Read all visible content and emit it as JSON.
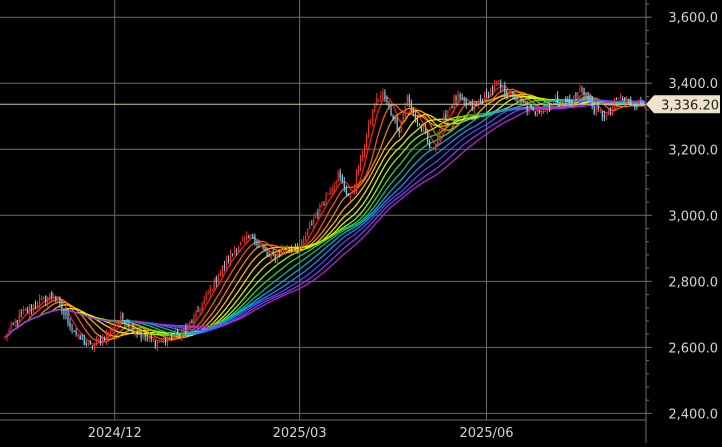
{
  "chart_data": {
    "type": "candlestick",
    "title": "",
    "xlabel": "",
    "ylabel": "",
    "ylim": [
      2380,
      3640
    ],
    "y_ticks": [
      {
        "value": 2400,
        "label": "2,400.0"
      },
      {
        "value": 2600,
        "label": "2,600.0"
      },
      {
        "value": 2800,
        "label": "2,800.0"
      },
      {
        "value": 3000,
        "label": "3,000.0"
      },
      {
        "value": 3200,
        "label": "3,200.0"
      },
      {
        "value": 3400,
        "label": "3,400.0"
      },
      {
        "value": 3600,
        "label": "3,600.0"
      }
    ],
    "x_ticks": [
      {
        "label": "2024/12",
        "day": 54
      },
      {
        "label": "2025/03",
        "day": 145
      },
      {
        "label": "2025/06",
        "day": 237
      }
    ],
    "days_total": 316,
    "grid": true,
    "last_price": {
      "value": 3336.2,
      "label": "3,336.20"
    },
    "series": [
      {
        "anchor_days": [
          0,
          8,
          16,
          24,
          30,
          36,
          42,
          50,
          58,
          66,
          74,
          82,
          90,
          98,
          106,
          114,
          122,
          130,
          138,
          146,
          152,
          158,
          164,
          170,
          176,
          182,
          186,
          190,
          194,
          198,
          202,
          206,
          210,
          214,
          218,
          222,
          226,
          230,
          236,
          242,
          248,
          254,
          260,
          266,
          272,
          278,
          284,
          290,
          296,
          302,
          308,
          316
        ],
        "anchor_closes": [
          2630,
          2700,
          2735,
          2760,
          2690,
          2630,
          2600,
          2640,
          2690,
          2640,
          2615,
          2630,
          2660,
          2740,
          2830,
          2905,
          2935,
          2870,
          2900,
          2910,
          2990,
          3060,
          3120,
          3050,
          3190,
          3340,
          3370,
          3310,
          3260,
          3355,
          3290,
          3250,
          3190,
          3260,
          3320,
          3355,
          3340,
          3325,
          3360,
          3395,
          3370,
          3340,
          3310,
          3330,
          3350,
          3340,
          3385,
          3320,
          3300,
          3355,
          3340,
          3336.2
        ]
      }
    ],
    "candle_colors": {
      "up": "#e8342a",
      "down": "#87ceeb"
    },
    "ma_colors": [
      "#ff1e1e",
      "#ff5a14",
      "#ff8c00",
      "#ffbe00",
      "#ffe600",
      "#dcff00",
      "#96ff00",
      "#3cdc28",
      "#00c88c",
      "#00b4dc",
      "#1e8cff",
      "#4b50ff",
      "#8c3cff",
      "#b428dc"
    ],
    "ma_periods": [
      2,
      4,
      6,
      8,
      10,
      12,
      14,
      16,
      18,
      20,
      22,
      24,
      26,
      28
    ],
    "colors": {
      "background": "#000000",
      "grid": "#6a6a6a",
      "axis_text": "#d4d4d4",
      "price_line": "#c8c8a0",
      "price_tag_bg": "#efe4c9",
      "price_tag_text": "#222222"
    }
  }
}
